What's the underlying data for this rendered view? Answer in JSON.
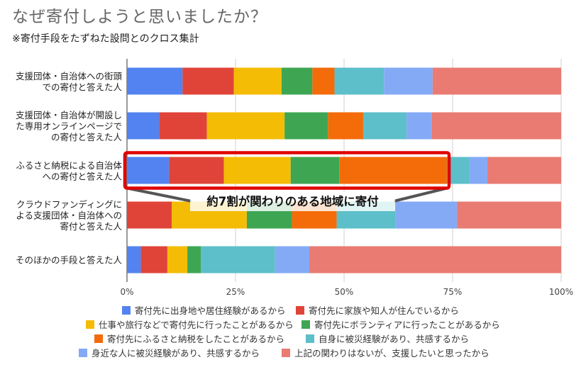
{
  "page": {
    "title": "なぜ寄付しようと思いましたか？",
    "subtitle": "※寄付手段をたずねた設問とのクロス集計"
  },
  "chart_data": {
    "type": "bar",
    "orientation": "horizontal",
    "stacked": true,
    "percent": true,
    "categories": [
      [
        "支援団体・自治体への街頭",
        "での寄付と答えた人"
      ],
      [
        "支援団体・自治体が開設し",
        "た専用オンラインページで",
        "の寄付と答えた人"
      ],
      [
        "ふるさと納税による自治体",
        "への寄付と答えた人"
      ],
      [
        "クラウドファンディングに",
        "よる支援団体・自治体への",
        "寄付と答えた人"
      ],
      [
        "そのほかの手段と答えた人"
      ]
    ],
    "series": [
      {
        "name": "寄付先に出身地や居住経験があるから",
        "color": "#5283f0",
        "values": [
          12.8,
          7.4,
          9.7,
          0,
          3.2
        ]
      },
      {
        "name": "寄付先に家族や知人が住んでいるから",
        "color": "#e04438",
        "values": [
          11.8,
          11.0,
          12.6,
          10.3,
          6.1
        ]
      },
      {
        "name": "仕事や旅行などで寄付先に行ったことがあるから",
        "color": "#f4bc05",
        "values": [
          11.0,
          17.9,
          15.4,
          17.3,
          4.6
        ]
      },
      {
        "name": "寄付先にボランティアに行ったことがあるから",
        "color": "#3ea653",
        "values": [
          7.1,
          10.0,
          11.2,
          10.4,
          3.1
        ]
      },
      {
        "name": "寄付先にふるさと納税をしたことがあるから",
        "color": "#f46b0a",
        "values": [
          5.1,
          8.1,
          24.8,
          10.3,
          0
        ]
      },
      {
        "name": "自身に被災経験があり、共感するから",
        "color": "#5cbfc9",
        "values": [
          11.4,
          10.0,
          5.2,
          13.6,
          17.1
        ]
      },
      {
        "name": "身近な人に被災経験があり、共感するから",
        "color": "#84aaf6",
        "values": [
          11.2,
          5.8,
          4.1,
          14.1,
          7.9
        ]
      },
      {
        "name": "上記の関わりはないが、支援したいと思ったから",
        "color": "#e97b72",
        "values": [
          29.6,
          29.8,
          17.0,
          24.0,
          58.0
        ]
      }
    ],
    "xticks": [
      "0%",
      "25%",
      "50%",
      "75%",
      "100%"
    ],
    "xlim": [
      0,
      100
    ],
    "grid": true,
    "legend_position": "bottom",
    "annotation": {
      "text": "約7割が関わりのある地域に寄付",
      "highlight_category_index": 2,
      "highlight_range": [
        0,
        73.7
      ],
      "color": "#e00000"
    }
  }
}
